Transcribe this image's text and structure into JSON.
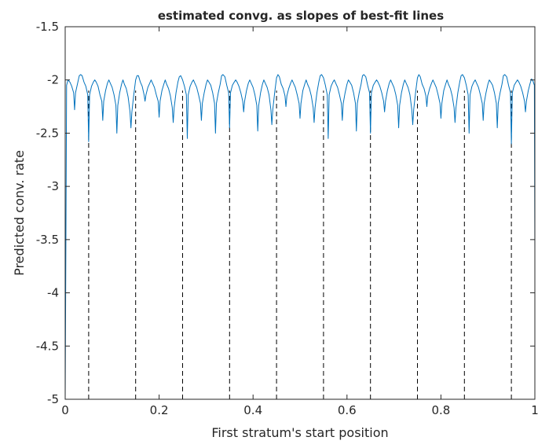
{
  "chart_data": {
    "type": "line",
    "title": "estimated convg. as slopes of best-fit lines",
    "xlabel": "First stratum's start position",
    "ylabel": "Predicted conv. rate",
    "xlim": [
      0,
      1
    ],
    "ylim": [
      -5,
      -1.5
    ],
    "xticks": [
      {
        "value": 0,
        "label": "0"
      },
      {
        "value": 0.2,
        "label": "0.2"
      },
      {
        "value": 0.4,
        "label": "0.4"
      },
      {
        "value": 0.6,
        "label": "0.6"
      },
      {
        "value": 0.8,
        "label": "0.8"
      },
      {
        "value": 1,
        "label": "1"
      }
    ],
    "yticks": [
      {
        "value": -1.5,
        "label": "-1.5"
      },
      {
        "value": -2,
        "label": "-2"
      },
      {
        "value": -2.5,
        "label": "-2.5"
      },
      {
        "value": -3,
        "label": "-3"
      },
      {
        "value": -3.5,
        "label": "-3.5"
      },
      {
        "value": -4,
        "label": "-4"
      },
      {
        "value": -4.5,
        "label": "-4.5"
      },
      {
        "value": -5,
        "label": "-5"
      }
    ],
    "grid": false,
    "series": [
      {
        "style": "solid",
        "color": "#0072bd",
        "x": [
          0,
          0.003,
          0.006,
          0.01,
          0.014,
          0.018,
          0.02,
          0.022,
          0.026,
          0.03,
          0.033,
          0.036,
          0.04,
          0.044,
          0.048,
          0.05,
          0.052,
          0.056,
          0.06,
          0.063,
          0.066,
          0.07,
          0.074,
          0.078,
          0.08,
          0.082,
          0.086,
          0.09,
          0.093,
          0.096,
          0.1,
          0.104,
          0.108,
          0.11,
          0.112,
          0.116,
          0.12,
          0.123,
          0.126,
          0.13,
          0.134,
          0.138,
          0.14,
          0.142,
          0.146,
          0.15,
          0.153,
          0.156,
          0.16,
          0.164,
          0.168,
          0.17,
          0.172,
          0.176,
          0.18,
          0.183,
          0.186,
          0.19,
          0.194,
          0.198,
          0.2,
          0.202,
          0.206,
          0.21,
          0.213,
          0.216,
          0.22,
          0.224,
          0.228,
          0.23,
          0.232,
          0.236,
          0.24,
          0.243,
          0.246,
          0.25,
          0.254,
          0.258,
          0.26,
          0.262,
          0.266,
          0.27,
          0.273,
          0.276,
          0.28,
          0.284,
          0.288,
          0.29,
          0.292,
          0.296,
          0.3,
          0.303,
          0.306,
          0.31,
          0.314,
          0.318,
          0.32,
          0.322,
          0.326,
          0.33,
          0.333,
          0.336,
          0.34,
          0.344,
          0.348,
          0.35,
          0.352,
          0.356,
          0.36,
          0.363,
          0.366,
          0.37,
          0.374,
          0.378,
          0.38,
          0.382,
          0.386,
          0.39,
          0.393,
          0.396,
          0.4,
          0.404,
          0.408,
          0.41,
          0.412,
          0.416,
          0.42,
          0.423,
          0.426,
          0.43,
          0.434,
          0.438,
          0.44,
          0.442,
          0.446,
          0.45,
          0.453,
          0.456,
          0.46,
          0.464,
          0.468,
          0.47,
          0.472,
          0.476,
          0.48,
          0.483,
          0.486,
          0.49,
          0.494,
          0.498,
          0.5,
          0.502,
          0.506,
          0.51,
          0.513,
          0.516,
          0.52,
          0.524,
          0.528,
          0.53,
          0.532,
          0.536,
          0.54,
          0.543,
          0.546,
          0.55,
          0.554,
          0.558,
          0.56,
          0.562,
          0.566,
          0.57,
          0.573,
          0.576,
          0.58,
          0.584,
          0.588,
          0.59,
          0.592,
          0.596,
          0.6,
          0.603,
          0.606,
          0.61,
          0.614,
          0.618,
          0.62,
          0.622,
          0.626,
          0.63,
          0.633,
          0.636,
          0.64,
          0.644,
          0.648,
          0.65,
          0.652,
          0.656,
          0.66,
          0.663,
          0.666,
          0.67,
          0.674,
          0.678,
          0.68,
          0.682,
          0.686,
          0.69,
          0.693,
          0.696,
          0.7,
          0.704,
          0.708,
          0.71,
          0.712,
          0.716,
          0.72,
          0.723,
          0.726,
          0.73,
          0.734,
          0.738,
          0.74,
          0.742,
          0.746,
          0.75,
          0.753,
          0.756,
          0.76,
          0.764,
          0.768,
          0.77,
          0.772,
          0.776,
          0.78,
          0.783,
          0.786,
          0.79,
          0.794,
          0.798,
          0.8,
          0.802,
          0.806,
          0.81,
          0.813,
          0.816,
          0.82,
          0.824,
          0.828,
          0.83,
          0.832,
          0.836,
          0.84,
          0.843,
          0.846,
          0.85,
          0.854,
          0.858,
          0.86,
          0.862,
          0.866,
          0.87,
          0.873,
          0.876,
          0.88,
          0.884,
          0.888,
          0.89,
          0.892,
          0.896,
          0.9,
          0.903,
          0.906,
          0.91,
          0.914,
          0.918,
          0.92,
          0.922,
          0.926,
          0.93,
          0.933,
          0.936,
          0.94,
          0.944,
          0.948,
          0.95,
          0.952,
          0.956,
          0.96,
          0.963,
          0.966,
          0.97,
          0.974,
          0.978,
          0.98,
          0.982,
          0.986,
          0.99,
          0.993,
          0.996,
          0.999,
          1
        ],
        "y": [
          -5,
          -2.05,
          -2.0,
          -2.02,
          -2.06,
          -2.12,
          -2.28,
          -2.12,
          -2.04,
          -1.96,
          -1.95,
          -1.96,
          -2.02,
          -2.06,
          -2.14,
          -2.58,
          -2.14,
          -2.06,
          -2.02,
          -2.0,
          -2.02,
          -2.06,
          -2.14,
          -2.2,
          -2.38,
          -2.2,
          -2.1,
          -2.03,
          -2.0,
          -2.03,
          -2.07,
          -2.14,
          -2.24,
          -2.5,
          -2.24,
          -2.12,
          -2.04,
          -2.0,
          -2.04,
          -2.08,
          -2.16,
          -2.3,
          -2.45,
          -2.3,
          -2.14,
          -2.0,
          -1.96,
          -1.96,
          -2.02,
          -2.06,
          -2.14,
          -2.2,
          -2.14,
          -2.07,
          -2.03,
          -2.0,
          -2.03,
          -2.07,
          -2.14,
          -2.2,
          -2.35,
          -2.2,
          -2.1,
          -2.04,
          -2.0,
          -2.04,
          -2.08,
          -2.15,
          -2.26,
          -2.4,
          -2.26,
          -2.12,
          -2.02,
          -1.97,
          -1.96,
          -2.0,
          -2.06,
          -2.14,
          -2.55,
          -2.14,
          -2.06,
          -2.02,
          -2.0,
          -2.03,
          -2.07,
          -2.14,
          -2.22,
          -2.38,
          -2.22,
          -2.12,
          -2.04,
          -2.0,
          -2.02,
          -2.05,
          -2.12,
          -2.22,
          -2.5,
          -2.22,
          -2.12,
          -2.04,
          -1.96,
          -1.95,
          -1.97,
          -2.05,
          -2.12,
          -2.45,
          -2.12,
          -2.05,
          -2.02,
          -2.0,
          -2.02,
          -2.06,
          -2.12,
          -2.2,
          -2.3,
          -2.2,
          -2.1,
          -2.03,
          -2.0,
          -2.03,
          -2.07,
          -2.14,
          -2.24,
          -2.48,
          -2.24,
          -2.12,
          -2.04,
          -2.0,
          -2.03,
          -2.07,
          -2.14,
          -2.28,
          -2.42,
          -2.28,
          -2.12,
          -1.98,
          -1.95,
          -1.97,
          -2.04,
          -2.08,
          -2.15,
          -2.25,
          -2.15,
          -2.08,
          -2.03,
          -2.0,
          -2.03,
          -2.07,
          -2.14,
          -2.22,
          -2.36,
          -2.22,
          -2.1,
          -2.04,
          -2.0,
          -2.04,
          -2.08,
          -2.15,
          -2.26,
          -2.4,
          -2.26,
          -2.12,
          -2.02,
          -1.96,
          -1.95,
          -1.98,
          -2.05,
          -2.14,
          -2.55,
          -2.14,
          -2.06,
          -2.02,
          -2.0,
          -2.03,
          -2.07,
          -2.14,
          -2.22,
          -2.38,
          -2.22,
          -2.12,
          -2.04,
          -2.0,
          -2.02,
          -2.05,
          -2.12,
          -2.22,
          -2.48,
          -2.22,
          -2.12,
          -2.04,
          -1.96,
          -1.95,
          -1.97,
          -2.05,
          -2.12,
          -2.5,
          -2.12,
          -2.05,
          -2.02,
          -2.0,
          -2.02,
          -2.06,
          -2.12,
          -2.2,
          -2.3,
          -2.2,
          -2.1,
          -2.03,
          -2.0,
          -2.03,
          -2.07,
          -2.14,
          -2.24,
          -2.45,
          -2.24,
          -2.12,
          -2.04,
          -2.0,
          -2.03,
          -2.07,
          -2.14,
          -2.28,
          -2.42,
          -2.28,
          -2.12,
          -1.98,
          -1.95,
          -1.97,
          -2.04,
          -2.08,
          -2.15,
          -2.25,
          -2.15,
          -2.08,
          -2.03,
          -2.0,
          -2.03,
          -2.07,
          -2.14,
          -2.22,
          -2.36,
          -2.22,
          -2.1,
          -2.04,
          -2.0,
          -2.04,
          -2.08,
          -2.15,
          -2.26,
          -2.4,
          -2.26,
          -2.12,
          -2.02,
          -1.96,
          -1.95,
          -1.98,
          -2.05,
          -2.14,
          -2.5,
          -2.14,
          -2.06,
          -2.02,
          -2.0,
          -2.03,
          -2.07,
          -2.14,
          -2.22,
          -2.38,
          -2.22,
          -2.12,
          -2.04,
          -2.0,
          -2.02,
          -2.05,
          -2.12,
          -2.22,
          -2.45,
          -2.22,
          -2.12,
          -2.04,
          -1.96,
          -1.95,
          -1.97,
          -2.05,
          -2.12,
          -2.6,
          -2.12,
          -2.05,
          -2.02,
          -2.0,
          -2.02,
          -2.06,
          -2.12,
          -2.2,
          -2.3,
          -2.2,
          -2.1,
          -2.03,
          -1.99,
          -2.01,
          -2.05,
          -3.6
        ]
      },
      {
        "style": "dashed",
        "color": "#000000",
        "segments": [
          {
            "x": 0.05,
            "y": [
              -5,
              -2.1
            ]
          },
          {
            "x": 0.15,
            "y": [
              -5,
              -2.1
            ]
          },
          {
            "x": 0.25,
            "y": [
              -5,
              -2.1
            ]
          },
          {
            "x": 0.35,
            "y": [
              -5,
              -2.1
            ]
          },
          {
            "x": 0.45,
            "y": [
              -5,
              -2.1
            ]
          },
          {
            "x": 0.55,
            "y": [
              -5,
              -2.1
            ]
          },
          {
            "x": 0.65,
            "y": [
              -5,
              -2.1
            ]
          },
          {
            "x": 0.75,
            "y": [
              -5,
              -2.1
            ]
          },
          {
            "x": 0.85,
            "y": [
              -5,
              -2.1
            ]
          },
          {
            "x": 0.95,
            "y": [
              -5,
              -2.1
            ]
          }
        ]
      }
    ]
  }
}
